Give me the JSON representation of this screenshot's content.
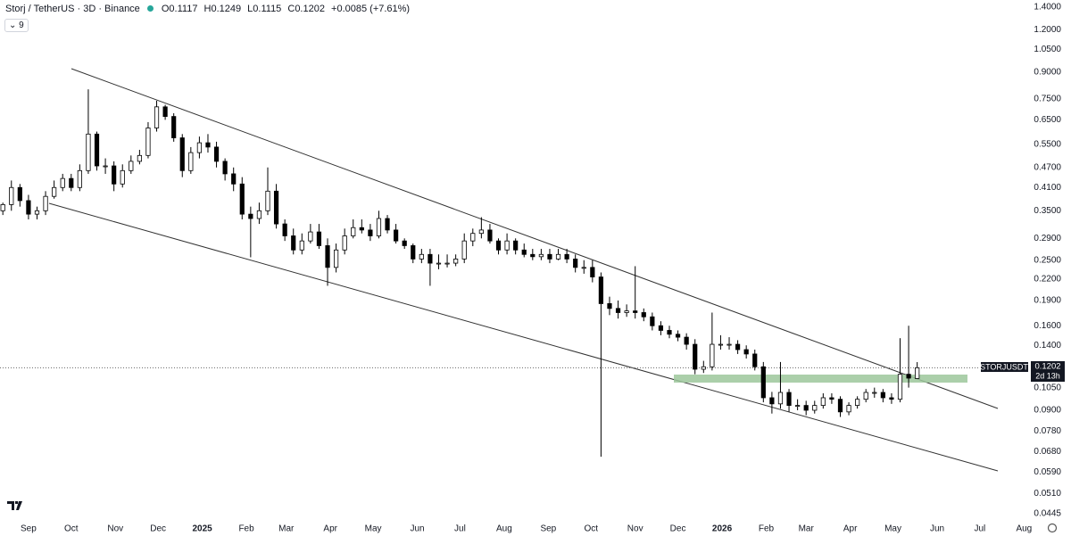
{
  "header": {
    "title": "Storj / TetherUS · 3D · Binance",
    "o": "O0.1117",
    "h": "H0.1249",
    "l": "L0.1115",
    "c": "C0.1202",
    "change": "+0.0085 (+7.61%)",
    "indicators": "9"
  },
  "price_tag": {
    "symbol": "STORJUSDT",
    "price": "0.1202",
    "countdown": "2d 13h"
  },
  "chart_data": {
    "type": "candlestick",
    "log_scale": true,
    "up_color": "#ffffff",
    "down_color": "#000000",
    "edge_color": "#000000",
    "xlim": [
      -20,
      732
    ],
    "xticks": [
      {
        "value": 0,
        "label": "Sep"
      },
      {
        "value": 30,
        "label": "Oct"
      },
      {
        "value": 61,
        "label": "Nov"
      },
      {
        "value": 91,
        "label": "Dec"
      },
      {
        "value": 122,
        "label": "2025"
      },
      {
        "value": 153,
        "label": "Feb"
      },
      {
        "value": 181,
        "label": "Mar"
      },
      {
        "value": 212,
        "label": "Apr"
      },
      {
        "value": 242,
        "label": "May"
      },
      {
        "value": 273,
        "label": "Jun"
      },
      {
        "value": 303,
        "label": "Jul"
      },
      {
        "value": 334,
        "label": "Aug"
      },
      {
        "value": 365,
        "label": "Sep"
      },
      {
        "value": 395,
        "label": "Oct"
      },
      {
        "value": 426,
        "label": "Nov"
      },
      {
        "value": 456,
        "label": "Dec"
      },
      {
        "value": 487,
        "label": "2026"
      },
      {
        "value": 518,
        "label": "Feb"
      },
      {
        "value": 546,
        "label": "Mar"
      },
      {
        "value": 577,
        "label": "Apr"
      },
      {
        "value": 607,
        "label": "May"
      },
      {
        "value": 638,
        "label": "Jun"
      },
      {
        "value": 668,
        "label": "Jul"
      },
      {
        "value": 699,
        "label": "Aug"
      }
    ],
    "ylim": [
      0.0445,
      1.4
    ],
    "yticks": [
      {
        "value": 1.4,
        "label": "1.4000"
      },
      {
        "value": 1.2,
        "label": "1.2000"
      },
      {
        "value": 1.05,
        "label": "1.0500"
      },
      {
        "value": 0.9,
        "label": "0.9000"
      },
      {
        "value": 0.75,
        "label": "0.7500"
      },
      {
        "value": 0.65,
        "label": "0.6500"
      },
      {
        "value": 0.55,
        "label": "0.5500"
      },
      {
        "value": 0.47,
        "label": "0.4700"
      },
      {
        "value": 0.41,
        "label": "0.4100"
      },
      {
        "value": 0.35,
        "label": "0.3500"
      },
      {
        "value": 0.29,
        "label": "0.2900"
      },
      {
        "value": 0.25,
        "label": "0.2500"
      },
      {
        "value": 0.22,
        "label": "0.2200"
      },
      {
        "value": 0.19,
        "label": "0.1900"
      },
      {
        "value": 0.16,
        "label": "0.1600"
      },
      {
        "value": 0.14,
        "label": "0.1400"
      },
      {
        "value": 0.105,
        "label": "0.1050"
      },
      {
        "value": 0.09,
        "label": "0.0900"
      },
      {
        "value": 0.078,
        "label": "0.0780"
      },
      {
        "value": 0.068,
        "label": "0.0680"
      },
      {
        "value": 0.059,
        "label": "0.0590"
      },
      {
        "value": 0.051,
        "label": "0.0510"
      },
      {
        "value": 0.0445,
        "label": "0.0445"
      }
    ],
    "x": [
      -18,
      -12,
      -6,
      0,
      6,
      12,
      18,
      24,
      30,
      36,
      42,
      48,
      54,
      60,
      66,
      72,
      78,
      84,
      90,
      96,
      102,
      108,
      114,
      120,
      126,
      132,
      138,
      144,
      150,
      156,
      162,
      168,
      174,
      180,
      186,
      192,
      198,
      204,
      210,
      216,
      222,
      228,
      234,
      240,
      246,
      252,
      258,
      264,
      270,
      276,
      282,
      288,
      294,
      300,
      306,
      312,
      318,
      324,
      330,
      336,
      342,
      348,
      354,
      360,
      366,
      372,
      378,
      384,
      390,
      396,
      402,
      408,
      414,
      420,
      426,
      432,
      438,
      444,
      450,
      456,
      462,
      468,
      474,
      480,
      486,
      492,
      498,
      504,
      510,
      516,
      522,
      528,
      534,
      540,
      546,
      552,
      558,
      564,
      570,
      576,
      582,
      588,
      594,
      600,
      606,
      612,
      618,
      624
    ],
    "open": [
      0.35,
      0.365,
      0.41,
      0.375,
      0.342,
      0.35,
      0.386,
      0.41,
      0.436,
      0.41,
      0.46,
      0.59,
      0.475,
      0.475,
      0.42,
      0.46,
      0.49,
      0.51,
      0.615,
      0.71,
      0.665,
      0.575,
      0.46,
      0.52,
      0.556,
      0.54,
      0.49,
      0.45,
      0.42,
      0.342,
      0.332,
      0.35,
      0.4,
      0.32,
      0.295,
      0.268,
      0.285,
      0.303,
      0.276,
      0.238,
      0.268,
      0.295,
      0.312,
      0.307,
      0.295,
      0.332,
      0.307,
      0.285,
      0.276,
      0.252,
      0.26,
      0.245,
      0.245,
      0.245,
      0.252,
      0.285,
      0.3,
      0.307,
      0.285,
      0.268,
      0.285,
      0.268,
      0.26,
      0.256,
      0.26,
      0.252,
      0.26,
      0.252,
      0.238,
      0.238,
      0.223,
      0.186,
      0.18,
      0.175,
      0.177,
      0.175,
      0.17,
      0.16,
      0.155,
      0.151,
      0.148,
      0.141,
      0.119,
      0.121,
      0.141,
      0.141,
      0.141,
      0.136,
      0.132,
      0.121,
      0.098,
      0.094,
      0.1016,
      0.093,
      0.093,
      0.09,
      0.093,
      0.098,
      0.097,
      0.089,
      0.093,
      0.097,
      0.1016,
      0.1016,
      0.098,
      0.097,
      0.115,
      0.1117
    ],
    "high": [
      0.37,
      0.43,
      0.42,
      0.39,
      0.36,
      0.4,
      0.43,
      0.45,
      0.45,
      0.48,
      0.8,
      0.6,
      0.5,
      0.49,
      0.48,
      0.51,
      0.53,
      0.64,
      0.74,
      0.72,
      0.68,
      0.59,
      0.54,
      0.58,
      0.59,
      0.56,
      0.5,
      0.47,
      0.44,
      0.36,
      0.37,
      0.47,
      0.42,
      0.33,
      0.31,
      0.3,
      0.32,
      0.32,
      0.29,
      0.28,
      0.31,
      0.33,
      0.33,
      0.32,
      0.35,
      0.34,
      0.32,
      0.29,
      0.28,
      0.27,
      0.27,
      0.26,
      0.26,
      0.26,
      0.3,
      0.31,
      0.335,
      0.32,
      0.29,
      0.3,
      0.29,
      0.28,
      0.27,
      0.27,
      0.27,
      0.27,
      0.27,
      0.26,
      0.25,
      0.25,
      0.23,
      0.195,
      0.19,
      0.185,
      0.24,
      0.18,
      0.175,
      0.165,
      0.16,
      0.155,
      0.152,
      0.146,
      0.126,
      0.175,
      0.15,
      0.148,
      0.145,
      0.14,
      0.136,
      0.125,
      0.102,
      0.125,
      0.104,
      0.097,
      0.096,
      0.096,
      0.101,
      0.101,
      0.099,
      0.095,
      0.099,
      0.104,
      0.105,
      0.104,
      0.101,
      0.147,
      0.16,
      0.1249
    ],
    "low": [
      0.34,
      0.35,
      0.36,
      0.33,
      0.33,
      0.34,
      0.38,
      0.4,
      0.4,
      0.4,
      0.45,
      0.46,
      0.45,
      0.4,
      0.41,
      0.45,
      0.48,
      0.5,
      0.6,
      0.65,
      0.56,
      0.44,
      0.45,
      0.5,
      0.52,
      0.47,
      0.43,
      0.4,
      0.33,
      0.255,
      0.32,
      0.34,
      0.31,
      0.285,
      0.26,
      0.26,
      0.28,
      0.27,
      0.21,
      0.23,
      0.26,
      0.29,
      0.3,
      0.285,
      0.29,
      0.3,
      0.28,
      0.27,
      0.245,
      0.245,
      0.21,
      0.235,
      0.238,
      0.24,
      0.245,
      0.275,
      0.29,
      0.28,
      0.26,
      0.26,
      0.26,
      0.255,
      0.25,
      0.25,
      0.245,
      0.25,
      0.245,
      0.23,
      0.228,
      0.215,
      0.0656,
      0.172,
      0.168,
      0.17,
      0.168,
      0.165,
      0.155,
      0.15,
      0.147,
      0.144,
      0.136,
      0.115,
      0.116,
      0.118,
      0.136,
      0.136,
      0.132,
      0.128,
      0.118,
      0.095,
      0.088,
      0.091,
      0.089,
      0.09,
      0.087,
      0.088,
      0.091,
      0.094,
      0.086,
      0.087,
      0.091,
      0.095,
      0.098,
      0.095,
      0.094,
      0.095,
      0.105,
      0.1115
    ],
    "close": [
      0.365,
      0.41,
      0.375,
      0.342,
      0.35,
      0.386,
      0.41,
      0.436,
      0.41,
      0.46,
      0.59,
      0.475,
      0.475,
      0.42,
      0.46,
      0.49,
      0.51,
      0.615,
      0.71,
      0.665,
      0.575,
      0.46,
      0.52,
      0.556,
      0.54,
      0.49,
      0.45,
      0.42,
      0.342,
      0.332,
      0.35,
      0.4,
      0.32,
      0.295,
      0.268,
      0.285,
      0.303,
      0.276,
      0.238,
      0.268,
      0.295,
      0.312,
      0.307,
      0.295,
      0.332,
      0.307,
      0.285,
      0.276,
      0.252,
      0.26,
      0.245,
      0.245,
      0.245,
      0.252,
      0.285,
      0.3,
      0.307,
      0.285,
      0.268,
      0.285,
      0.268,
      0.26,
      0.256,
      0.26,
      0.252,
      0.26,
      0.252,
      0.238,
      0.238,
      0.223,
      0.186,
      0.18,
      0.175,
      0.177,
      0.175,
      0.17,
      0.16,
      0.155,
      0.151,
      0.148,
      0.141,
      0.119,
      0.121,
      0.141,
      0.141,
      0.141,
      0.136,
      0.132,
      0.121,
      0.098,
      0.094,
      0.1016,
      0.093,
      0.093,
      0.09,
      0.093,
      0.098,
      0.097,
      0.089,
      0.093,
      0.097,
      0.1016,
      0.1016,
      0.098,
      0.097,
      0.115,
      0.112,
      0.1202
    ]
  }
}
